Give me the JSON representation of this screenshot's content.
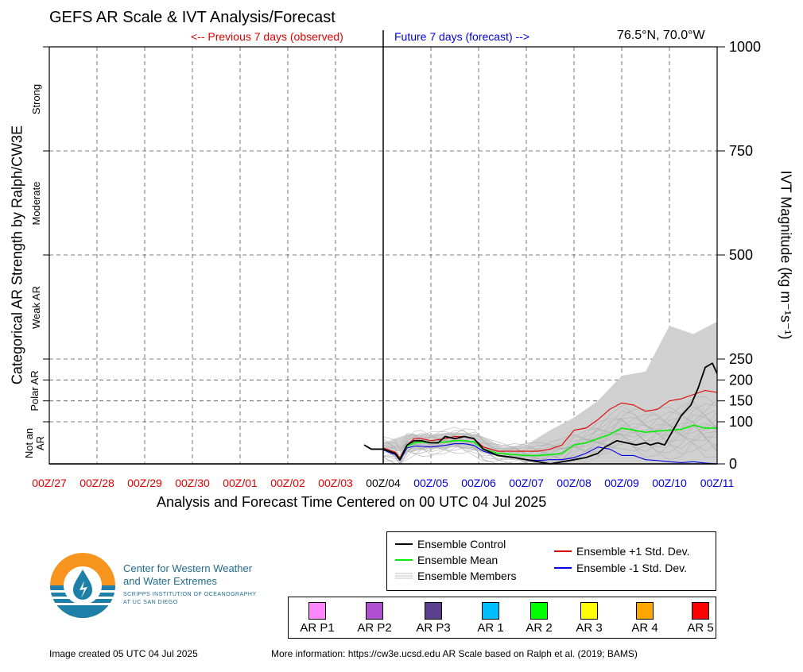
{
  "header": {
    "title": "GEFS AR Scale & IVT Analysis/Forecast",
    "previous_label": "<-- Previous 7 days (observed)",
    "future_label": "Future 7 days (forecast) -->",
    "location": "76.5°N, 70.0°W"
  },
  "colors": {
    "observed_red": "#e00000",
    "forecast_blue": "#0000e0",
    "control": "#000000",
    "mean": "#00ee00",
    "plus_std": "#e00000",
    "minus_std": "#0000e0",
    "members": "#b0b0b0",
    "spread_fill": "#d0d0d0"
  },
  "chart_data": {
    "type": "line",
    "title": "GEFS AR Scale & IVT Analysis/Forecast",
    "xlabel": "Analysis and Forecast Time Centered on 00 UTC 04 Jul 2025",
    "ylabel_left": "Categorical AR Strength by Ralph/CW3E",
    "ylabel_right": "IVT Magnitude (kg m⁻¹s⁻¹)",
    "x_ticks": [
      "00Z/27",
      "00Z/28",
      "00Z/29",
      "00Z/30",
      "00Z/01",
      "00Z/02",
      "00Z/03",
      "00Z/04",
      "00Z/05",
      "00Z/06",
      "00Z/07",
      "00Z/08",
      "00Z/09",
      "00Z/10",
      "00Z/11"
    ],
    "x_tick_colors": [
      "observed",
      "observed",
      "observed",
      "observed",
      "observed",
      "observed",
      "observed",
      "analysis",
      "forecast",
      "forecast",
      "forecast",
      "forecast",
      "forecast",
      "forecast",
      "forecast"
    ],
    "y_ticks": [
      0,
      100,
      150,
      200,
      250,
      500,
      750,
      1000
    ],
    "ylim": [
      0,
      1000
    ],
    "x_range_days": [
      -7,
      7
    ],
    "categories": [
      {
        "label": "Not an AR",
        "from": 0,
        "to": 100
      },
      {
        "label": "Polar AR",
        "from": 100,
        "to": 250
      },
      {
        "label": "Weak AR",
        "from": 250,
        "to": 500
      },
      {
        "label": "Moderate",
        "from": 500,
        "to": 750
      },
      {
        "label": "Strong",
        "from": 750,
        "to": 1000
      }
    ],
    "grid": true,
    "series": [
      {
        "name": "Ensemble Control",
        "role": "control",
        "x": [
          -0.4,
          -0.25,
          0,
          0.25,
          0.35,
          0.5,
          0.65,
          0.8,
          1,
          1.15,
          1.3,
          1.5,
          1.7,
          1.9,
          2.1,
          2.4,
          2.75,
          3,
          3.25,
          3.5,
          3.75,
          4,
          4.25,
          4.5,
          4.65,
          4.9,
          5.1,
          5.3,
          5.5,
          5.6,
          5.75,
          5.9,
          6.05,
          6.25,
          6.45,
          6.6,
          6.75,
          6.9,
          7
        ],
        "y": [
          45,
          35,
          35,
          25,
          10,
          45,
          55,
          55,
          50,
          50,
          65,
          60,
          65,
          60,
          35,
          20,
          15,
          10,
          5,
          0,
          5,
          10,
          15,
          25,
          40,
          55,
          50,
          45,
          50,
          45,
          50,
          45,
          75,
          115,
          140,
          180,
          230,
          240,
          215
        ]
      },
      {
        "name": "Ensemble Mean",
        "role": "mean",
        "x": [
          0,
          0.25,
          0.35,
          0.5,
          0.65,
          0.8,
          1,
          1.3,
          1.5,
          1.7,
          1.9,
          2.1,
          2.4,
          2.75,
          3,
          3.25,
          3.5,
          3.75,
          4,
          4.25,
          4.5,
          4.75,
          5,
          5.25,
          5.5,
          5.75,
          6,
          6.25,
          6.5,
          6.75,
          7
        ],
        "y": [
          35,
          25,
          12,
          42,
          50,
          52,
          50,
          52,
          55,
          55,
          52,
          35,
          25,
          22,
          20,
          20,
          22,
          25,
          45,
          50,
          60,
          70,
          85,
          80,
          75,
          78,
          80,
          82,
          92,
          85,
          85
        ]
      },
      {
        "name": "Ensemble +1 Std. Dev.",
        "role": "plus_std",
        "x": [
          0,
          0.25,
          0.35,
          0.5,
          0.65,
          0.8,
          1,
          1.3,
          1.5,
          1.7,
          1.9,
          2.1,
          2.4,
          2.75,
          3,
          3.25,
          3.5,
          3.75,
          4,
          4.25,
          4.5,
          4.75,
          5,
          5.25,
          5.5,
          5.75,
          6,
          6.25,
          6.5,
          6.75,
          7
        ],
        "y": [
          38,
          28,
          15,
          45,
          60,
          60,
          55,
          60,
          65,
          65,
          60,
          40,
          30,
          30,
          30,
          30,
          35,
          45,
          80,
          85,
          105,
          130,
          145,
          140,
          125,
          130,
          150,
          155,
          165,
          175,
          170
        ]
      },
      {
        "name": "Ensemble -1 Std. Dev.",
        "role": "minus_std",
        "x": [
          0,
          0.25,
          0.35,
          0.5,
          0.65,
          0.8,
          1,
          1.3,
          1.5,
          1.7,
          1.9,
          2.1,
          2.4,
          2.75,
          3,
          3.25,
          3.5,
          3.75,
          4,
          4.25,
          4.5,
          4.75,
          5,
          5.25,
          5.5,
          5.75,
          6,
          6.25,
          6.5,
          6.75,
          7
        ],
        "y": [
          33,
          22,
          8,
          38,
          42,
          42,
          40,
          44,
          48,
          48,
          44,
          30,
          20,
          15,
          10,
          8,
          10,
          10,
          15,
          25,
          40,
          35,
          20,
          20,
          10,
          8,
          5,
          3,
          5,
          2,
          0
        ]
      }
    ],
    "members_label": "Ensemble Members",
    "members_envelope": {
      "x": [
        0,
        0.5,
        1,
        1.5,
        2,
        2.5,
        3,
        3.5,
        4,
        4.5,
        5,
        5.5,
        6,
        6.5,
        7
      ],
      "upper": [
        50,
        70,
        70,
        75,
        70,
        40,
        45,
        80,
        110,
        150,
        210,
        220,
        330,
        310,
        340
      ],
      "lower": [
        30,
        30,
        35,
        40,
        30,
        15,
        5,
        0,
        0,
        0,
        0,
        0,
        0,
        0,
        0
      ]
    },
    "legend": {
      "entries": [
        "Ensemble Control",
        "Ensemble Mean",
        "Ensemble Members",
        "Ensemble +1 Std. Dev.",
        "Ensemble -1 Std. Dev."
      ],
      "placement": "bottom-right"
    }
  },
  "ar_scale_legend": [
    {
      "label": "AR P1",
      "color": "#ff88ff"
    },
    {
      "label": "AR P2",
      "color": "#b050d0"
    },
    {
      "label": "AR P3",
      "color": "#5a3f8c"
    },
    {
      "label": "AR 1",
      "color": "#00bfff"
    },
    {
      "label": "AR 2",
      "color": "#00ff00"
    },
    {
      "label": "AR 3",
      "color": "#ffff00"
    },
    {
      "label": "AR 4",
      "color": "#ffa500"
    },
    {
      "label": "AR 5",
      "color": "#ff0000"
    }
  ],
  "branding": {
    "org_line1": "Center for Western Weather",
    "org_line2": "and Water Extremes",
    "sub_line1": "SCRIPPS INSTITUTION OF OCEANOGRAPHY",
    "sub_line2": "AT UC SAN DIEGO",
    "logo_icon": "water-drop-sun-logo-icon"
  },
  "footer": {
    "created": "Image created 05 UTC 04 Jul 2025",
    "more_info": "More information: https://cw3e.ucsd.edu AR Scale based on Ralph et al. (2019; BAMS)"
  }
}
